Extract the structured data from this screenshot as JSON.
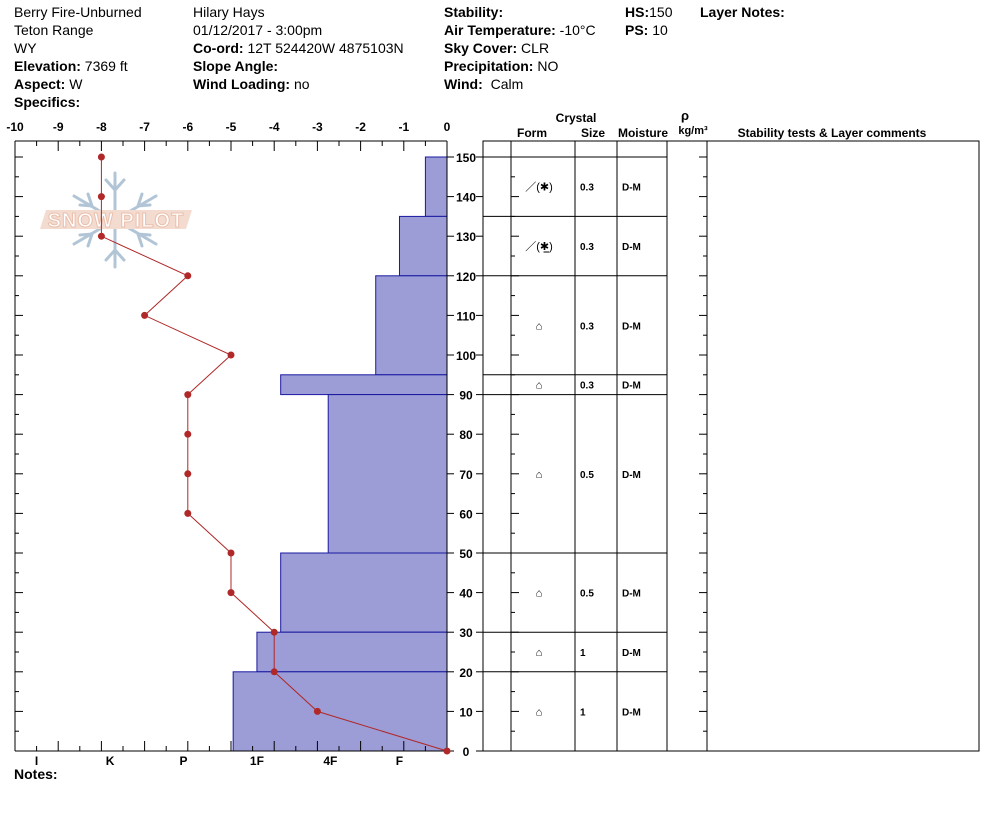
{
  "header": {
    "location_name": "Berry Fire-Unburned",
    "range": "Teton Range",
    "state": "WY",
    "elevation_label": "Elevation:",
    "elevation_value": "7369 ft",
    "aspect_label": "Aspect:",
    "aspect_value": "W",
    "specifics_label": "Specifics:",
    "observer": "Hilary Hays",
    "datetime": "01/12/2017 - 3:00pm",
    "coord_label": "Co-ord:",
    "coord_value": "12T 524420W 4875103N",
    "slope_label": "Slope Angle:",
    "wind_loading_label": "Wind Loading:",
    "wind_loading_value": "no",
    "stability_label": "Stability:",
    "air_temp_label": "Air Temperature:",
    "air_temp_value": "-10°C",
    "sky_label": "Sky Cover:",
    "sky_value": "CLR",
    "precip_label": "Precipitation:",
    "precip_value": "NO",
    "wind_label": "Wind:",
    "wind_value": "Calm",
    "hs_label": "HS:",
    "hs_value": "150",
    "ps_label": "PS:",
    "ps_value": "10",
    "layer_notes_label": "Layer Notes:"
  },
  "notes_label": "Notes:",
  "logo_text": "SNOW PILOT",
  "table_headers": {
    "crystal": "Crystal",
    "form": "Form",
    "size": "Size",
    "moisture": "Moisture",
    "rho": "ρ",
    "density_unit": "kg/m³",
    "comments": "Stability tests & Layer comments"
  },
  "colors": {
    "hardness_fill": "#9c9cd6",
    "hardness_stroke": "#1a1aa0",
    "temp_line": "#b02828"
  },
  "chart_data": {
    "type": "snow_profile",
    "temperature_axis": {
      "ticks": [
        "-10",
        "-9",
        "-8",
        "-7",
        "-6",
        "-5",
        "-4",
        "-3",
        "-2",
        "-1",
        "0"
      ],
      "range": [
        -10,
        0
      ]
    },
    "height_axis": {
      "ticks": [
        "0",
        "10",
        "20",
        "30",
        "40",
        "50",
        "60",
        "70",
        "80",
        "90",
        "100",
        "110",
        "120",
        "130",
        "140",
        "150"
      ],
      "range": [
        0,
        150
      ]
    },
    "hardness_axis": {
      "labels": [
        "I",
        "K",
        "P",
        "1F",
        "4F",
        "F"
      ],
      "label_positions": [
        -9.5,
        -7.8,
        -6.1,
        -4.4,
        -2.7,
        -1.1
      ]
    },
    "temperature_profile": [
      {
        "height": 150,
        "temp": -8
      },
      {
        "height": 140,
        "temp": -8
      },
      {
        "height": 130,
        "temp": -8
      },
      {
        "height": 120,
        "temp": -6
      },
      {
        "height": 110,
        "temp": -7
      },
      {
        "height": 100,
        "temp": -5
      },
      {
        "height": 90,
        "temp": -6
      },
      {
        "height": 80,
        "temp": -6
      },
      {
        "height": 70,
        "temp": -6
      },
      {
        "height": 60,
        "temp": -6
      },
      {
        "height": 50,
        "temp": -5
      },
      {
        "height": 40,
        "temp": -5
      },
      {
        "height": 30,
        "temp": -4
      },
      {
        "height": 20,
        "temp": -4
      },
      {
        "height": 10,
        "temp": -3
      },
      {
        "height": 0,
        "temp": 0
      }
    ],
    "hardness_layers": [
      {
        "top": 150,
        "bottom": 135,
        "extent": -0.5
      },
      {
        "top": 135,
        "bottom": 120,
        "extent": -1.1
      },
      {
        "top": 120,
        "bottom": 95,
        "extent": -1.65
      },
      {
        "top": 95,
        "bottom": 90,
        "extent": -3.85
      },
      {
        "top": 90,
        "bottom": 50,
        "extent": -2.75
      },
      {
        "top": 50,
        "bottom": 30,
        "extent": -3.85
      },
      {
        "top": 30,
        "bottom": 20,
        "extent": -4.4
      },
      {
        "top": 20,
        "bottom": 0,
        "extent": -4.95
      }
    ],
    "layers": [
      {
        "top": 150,
        "bottom": 135,
        "form": "／(✱)",
        "size": "0.3",
        "moisture": "D-M"
      },
      {
        "top": 135,
        "bottom": 120,
        "form": "／(✱̲)",
        "size": "0.3",
        "moisture": "D-M"
      },
      {
        "top": 120,
        "bottom": 95,
        "form": "⌂",
        "size": "0.3",
        "moisture": "D-M"
      },
      {
        "top": 95,
        "bottom": 90,
        "form": "⌂",
        "size": "0.3",
        "moisture": "D-M"
      },
      {
        "top": 90,
        "bottom": 50,
        "form": "⌂",
        "size": "0.5",
        "moisture": "D-M"
      },
      {
        "top": 50,
        "bottom": 30,
        "form": "⌂",
        "size": "0.5",
        "moisture": "D-M"
      },
      {
        "top": 30,
        "bottom": 20,
        "form": "⌂",
        "size": "1",
        "moisture": "D-M"
      },
      {
        "top": 20,
        "bottom": 0,
        "form": "⌂",
        "size": "1",
        "moisture": "D-M"
      }
    ]
  }
}
